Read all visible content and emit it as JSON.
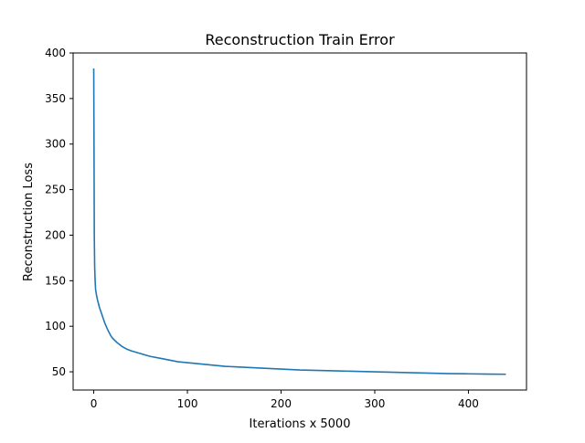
{
  "chart_data": {
    "type": "line",
    "title": "Reconstruction Train Error",
    "xlabel": "Iterations x 5000",
    "ylabel": "Reconstruction Loss",
    "xlim": [
      -22,
      462
    ],
    "ylim": [
      30,
      400
    ],
    "xticks": [
      0,
      100,
      200,
      300,
      400
    ],
    "yticks": [
      50,
      100,
      150,
      200,
      250,
      300,
      350,
      400
    ],
    "grid": false,
    "series": [
      {
        "color": "#1f77b4",
        "x": [
          0,
          0.3,
          0.6,
          1,
          1.5,
          2,
          3,
          4,
          5,
          6,
          8,
          10,
          12,
          15,
          18,
          20,
          25,
          30,
          35,
          40,
          50,
          60,
          70,
          80,
          90,
          100,
          120,
          140,
          160,
          180,
          200,
          220,
          240,
          260,
          280,
          300,
          320,
          340,
          360,
          380,
          400,
          420,
          440
        ],
        "y": [
          383,
          300,
          200,
          165,
          150,
          140,
          134,
          129,
          125,
          121,
          115,
          109,
          103,
          96,
          90,
          87,
          82,
          78,
          75,
          73,
          70,
          67,
          65,
          63,
          61,
          60,
          58,
          56,
          55,
          54,
          53,
          52,
          51.5,
          51,
          50.5,
          50,
          49.5,
          49,
          48.5,
          48,
          47.8,
          47.5,
          47.3
        ]
      }
    ]
  }
}
